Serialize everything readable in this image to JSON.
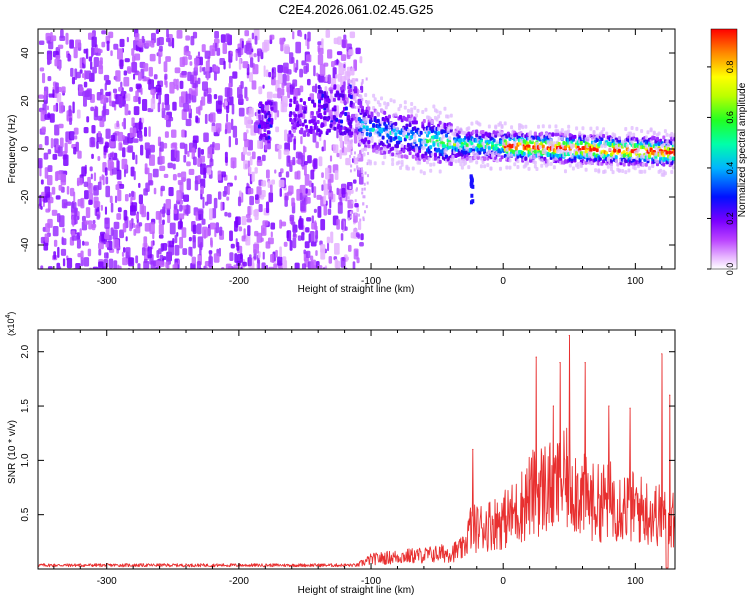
{
  "title": "C2E4.2026.061.02.45.G25",
  "chart_data": [
    {
      "type": "heatmap",
      "xlabel": "Height of straight line (km)",
      "ylabel": "Frequency (Hz)",
      "xlim": [
        -352,
        130
      ],
      "ylim": [
        -50,
        50
      ],
      "x_ticks": [
        -300,
        -200,
        -100,
        0,
        100
      ],
      "x_tick_labels": [
        "-300",
        "-200",
        "-100",
        "0",
        "100"
      ],
      "y_ticks": [
        -40,
        -20,
        0,
        20,
        40
      ],
      "y_tick_labels": [
        "-40",
        "-20",
        "0",
        "20",
        "40"
      ],
      "colorbar": {
        "label": "Normalized spectral amplitude",
        "range": [
          0,
          0.95
        ],
        "ticks": [
          0,
          0.2,
          0.4,
          0.6,
          0.8
        ],
        "tick_labels": [
          "0.0",
          "0.2",
          "0.4",
          "0.6",
          "0.8"
        ],
        "colormap": [
          "#ffffff",
          "#cc33ff",
          "#7700ff",
          "#0000ff",
          "#00c8ff",
          "#00ff66",
          "#aaff00",
          "#ffff00",
          "#ff8800",
          "#ff0000"
        ]
      },
      "features": [
        {
          "x_range": [
            -352,
            -108
          ],
          "freq_range": [
            -50,
            50
          ],
          "amplitude": 0.12
        },
        {
          "x_range": [
            -185,
            -175
          ],
          "freq_center": 12,
          "amplitude": 0.3
        },
        {
          "x_range": [
            -160,
            -110
          ],
          "freq_center": 15,
          "amplitude": 0.3
        },
        {
          "x_range": [
            -110,
            -20
          ],
          "freq_center": 2,
          "amplitude": 0.4
        },
        {
          "x_range": [
            -20,
            130
          ],
          "freq_center": 0,
          "amplitude": 0.8
        }
      ],
      "grid": false
    },
    {
      "type": "line",
      "xlabel": "Height of straight line (km)",
      "ylabel": "SNR (10 * v/v)",
      "y_unit": "(x10",
      "y_unit_exp": "4",
      "y_unit_close": ")",
      "xlim": [
        -352,
        130
      ],
      "ylim": [
        0,
        2.2
      ],
      "x_ticks": [
        -300,
        -200,
        -100,
        0,
        100
      ],
      "x_tick_labels": [
        "-300",
        "-200",
        "-100",
        "0",
        "100"
      ],
      "y_ticks": [
        0.5,
        1.0,
        1.5,
        2.0
      ],
      "y_tick_labels": [
        "0.5",
        "1.0",
        "1.5",
        "2.0"
      ],
      "series": [
        {
          "color": "#e83030",
          "x": [
            -352,
            -300,
            -200,
            -150,
            -110,
            -100,
            -80,
            -60,
            -40,
            -30,
            -25,
            -20,
            -10,
            0,
            10,
            20,
            30,
            40,
            50,
            60,
            70,
            80,
            90,
            100,
            110,
            120,
            125,
            130
          ],
          "y": [
            0.03,
            0.03,
            0.03,
            0.04,
            0.05,
            0.12,
            0.15,
            0.17,
            0.2,
            0.25,
            0.5,
            0.5,
            0.55,
            0.6,
            0.7,
            0.9,
            1.0,
            1.0,
            1.1,
            0.9,
            0.8,
            0.85,
            0.8,
            0.75,
            0.7,
            0.65,
            0.6,
            0.6
          ],
          "peaks": [
            {
              "x": -23,
              "y": 1.1
            },
            {
              "x": 25,
              "y": 1.95
            },
            {
              "x": 38,
              "y": 1.5
            },
            {
              "x": 43,
              "y": 1.9
            },
            {
              "x": 50,
              "y": 2.15
            },
            {
              "x": 62,
              "y": 1.9
            },
            {
              "x": 80,
              "y": 1.5
            },
            {
              "x": 96,
              "y": 1.48
            },
            {
              "x": 120,
              "y": 1.98
            },
            {
              "x": 126,
              "y": 1.6
            }
          ]
        }
      ],
      "grid": false
    }
  ]
}
